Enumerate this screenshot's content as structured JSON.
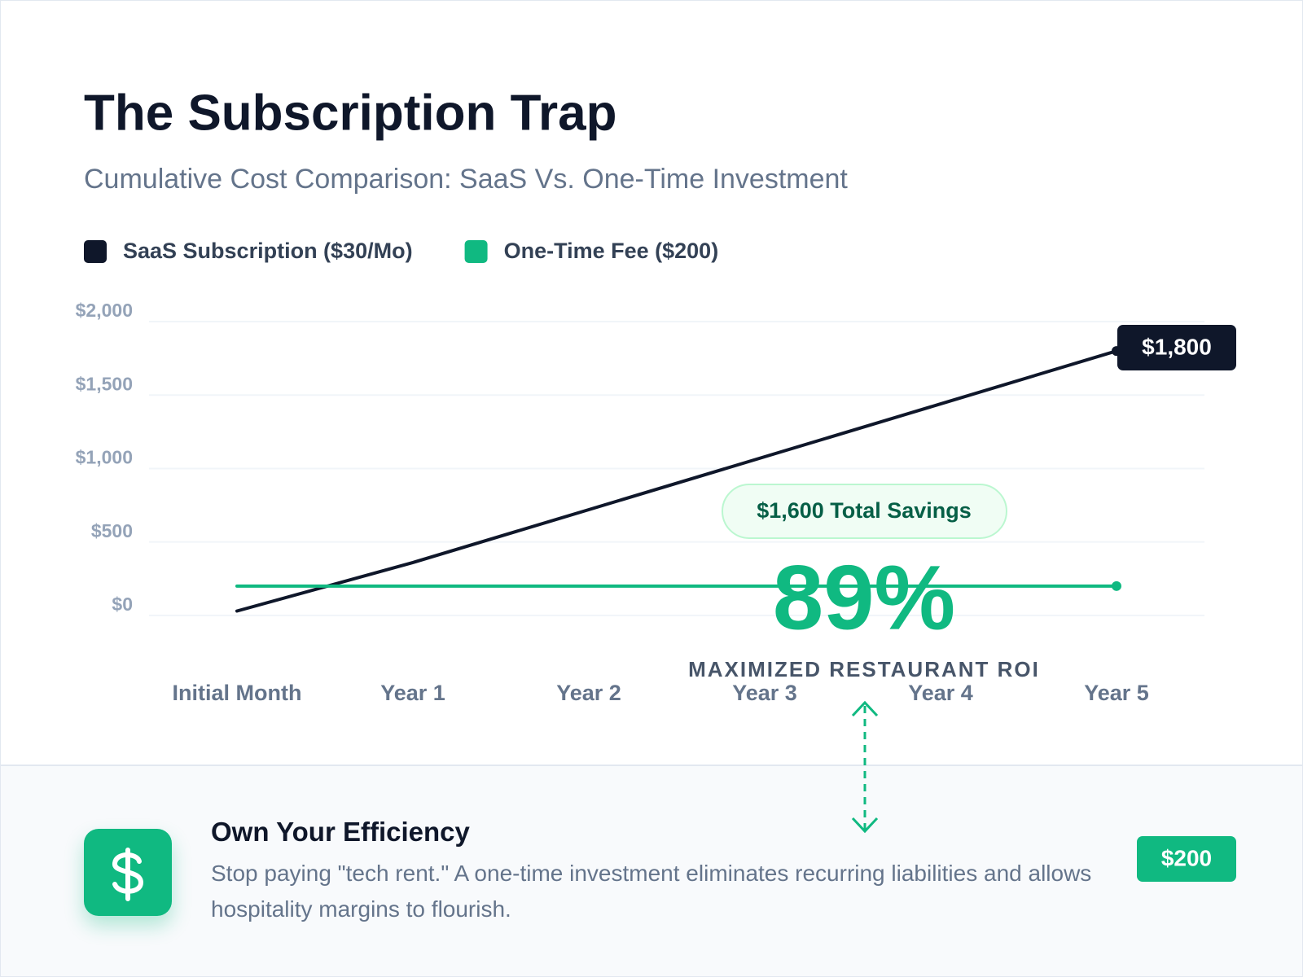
{
  "chart_data": {
    "type": "line",
    "title": "The Subscription Trap",
    "subtitle": "Cumulative Cost Comparison: SaaS Vs. One-Time Investment",
    "categories": [
      "Initial Month",
      "Year 1",
      "Year 2",
      "Year 3",
      "Year 4",
      "Year 5"
    ],
    "series": [
      {
        "name": "SaaS Subscription ($30/Mo)",
        "color": "#0f172a",
        "values": [
          30,
          360,
          720,
          1080,
          1440,
          1800
        ],
        "value_labels": [
          null,
          null,
          null,
          null,
          null,
          "$1,800"
        ]
      },
      {
        "name": "One-Time Fee ($200)",
        "color": "#10b981",
        "values": [
          200,
          200,
          200,
          200,
          200,
          200
        ],
        "value_labels": [
          null,
          null,
          null,
          null,
          null,
          "$200"
        ]
      }
    ],
    "ylim": [
      -200,
      2000
    ],
    "yticks": [
      {
        "value": 0,
        "label": "$0"
      },
      {
        "value": 500,
        "label": "$500"
      },
      {
        "value": 1000,
        "label": "$1,000"
      },
      {
        "value": 1500,
        "label": "$1,500"
      },
      {
        "value": 2000,
        "label": "$2,000"
      }
    ],
    "grid": true,
    "annotations": {
      "savings": "$1,600 Total Savings",
      "roi_value": "89%",
      "roi_label": "MAXIMIZED RESTAURANT ROI"
    }
  },
  "footer": {
    "title": "Own Your Efficiency",
    "text": "Stop paying \"tech rent.\" A one-time investment eliminates recurring liabilities and allows hospitality margins to flourish."
  }
}
